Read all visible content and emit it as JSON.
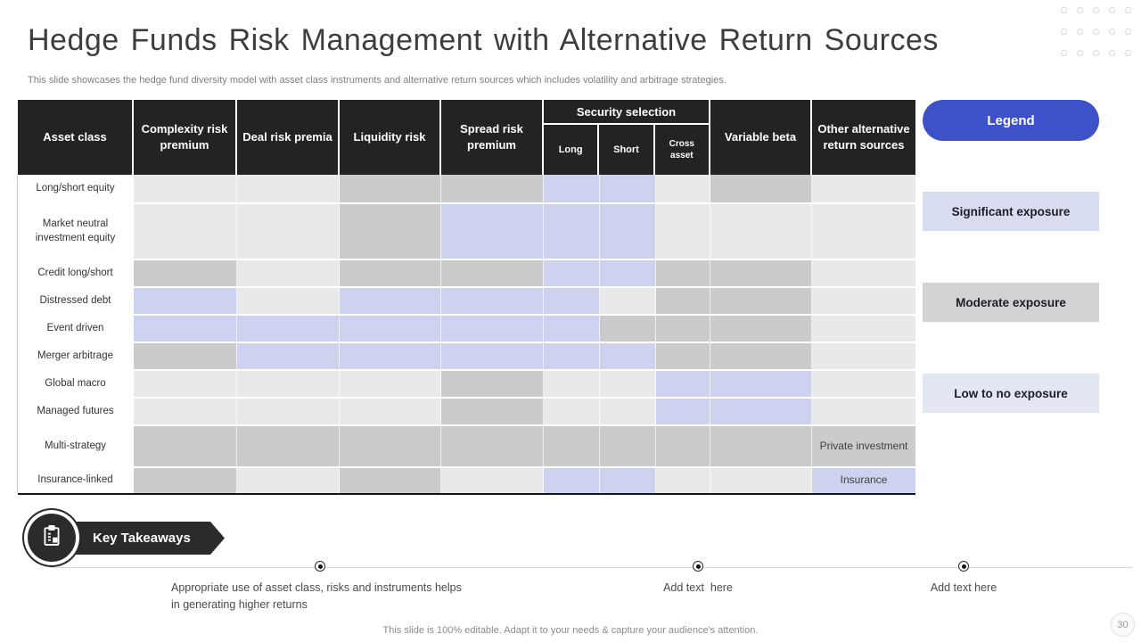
{
  "header": {
    "title": "Hedge Funds Risk Management with Alternative Return Sources",
    "subtitle": "This slide showcases the hedge fund diversity model with asset class instruments and alternative return sources which includes volatility and arbitrage strategies."
  },
  "table": {
    "header": {
      "asset_class": "Asset class",
      "complexity": "Complexity risk premium",
      "deal": "Deal risk premia",
      "liquidity": "Liquidity risk",
      "spread": "Spread risk premium",
      "security_selection": "Security selection",
      "long": "Long",
      "short": "Short",
      "cross_asset": "Cross asset",
      "variable_beta": "Variable beta",
      "other": "Other alternative return sources"
    },
    "rows": [
      {
        "label": "Long/short equity",
        "cells": [
          "low",
          "low",
          "mod",
          "mod",
          "sig",
          "sig",
          "low",
          "mod",
          "low"
        ]
      },
      {
        "label": "Market neutral investment equity",
        "cells": [
          "low",
          "low",
          "mod",
          "sig",
          "sig",
          "sig",
          "low",
          "low",
          "low"
        ]
      },
      {
        "label": "Credit long/short",
        "cells": [
          "mod",
          "low",
          "mod",
          "mod",
          "sig",
          "sig",
          "mod",
          "mod",
          "low"
        ]
      },
      {
        "label": "Distressed debt",
        "cells": [
          "sig",
          "low",
          "sig",
          "sig",
          "sig",
          "low",
          "mod",
          "mod",
          "low"
        ]
      },
      {
        "label": "Event driven",
        "cells": [
          "sig",
          "sig",
          "sig",
          "sig",
          "sig",
          "mod",
          "mod",
          "mod",
          "low"
        ]
      },
      {
        "label": "Merger arbitrage",
        "cells": [
          "mod",
          "sig",
          "sig",
          "sig",
          "sig",
          "sig",
          "mod",
          "mod",
          "low"
        ]
      },
      {
        "label": "Global macro",
        "cells": [
          "low",
          "low",
          "low",
          "mod",
          "low",
          "low",
          "sig",
          "sig",
          "low"
        ]
      },
      {
        "label": "Managed futures",
        "cells": [
          "low",
          "low",
          "low",
          "mod",
          "low",
          "low",
          "sig",
          "sig",
          "low"
        ]
      },
      {
        "label": "Multi-strategy",
        "cells": [
          "mod",
          "mod",
          "mod",
          "mod",
          "mod",
          "mod",
          "mod",
          "mod",
          "mod"
        ],
        "texts": [
          "",
          "",
          "",
          "",
          "",
          "",
          "",
          "",
          "Private investment"
        ]
      },
      {
        "label": "Insurance-linked",
        "cells": [
          "mod",
          "low",
          "mod",
          "low",
          "sig",
          "sig",
          "low",
          "low",
          "sig"
        ],
        "texts": [
          "",
          "",
          "",
          "",
          "",
          "",
          "",
          "",
          "Insurance"
        ]
      }
    ]
  },
  "legend": {
    "button_label": "Legend",
    "items": [
      {
        "label": "Significant exposure",
        "level": "sig",
        "color": "#d8dcf0"
      },
      {
        "label": "Moderate exposure",
        "level": "mod",
        "color": "#d2d2d2"
      },
      {
        "label": "Low to no exposure",
        "level": "low",
        "color": "#e3e6f3"
      }
    ]
  },
  "takeaways": {
    "title": "Key Takeaways",
    "bullets": [
      "Appropriate use of asset class, risks and instruments helps in generating higher returns",
      "Add text  here",
      "Add text here"
    ]
  },
  "footer": {
    "note": "This slide is 100% editable. Adapt it to your needs & capture your audience's attention.",
    "page_number": "30"
  },
  "colors": {
    "significant": "#cdd3ee",
    "moderate": "#cbcbcb",
    "low": "#e9e9e9",
    "header_bg": "#232323",
    "accent_blue": "#3d52c9"
  }
}
